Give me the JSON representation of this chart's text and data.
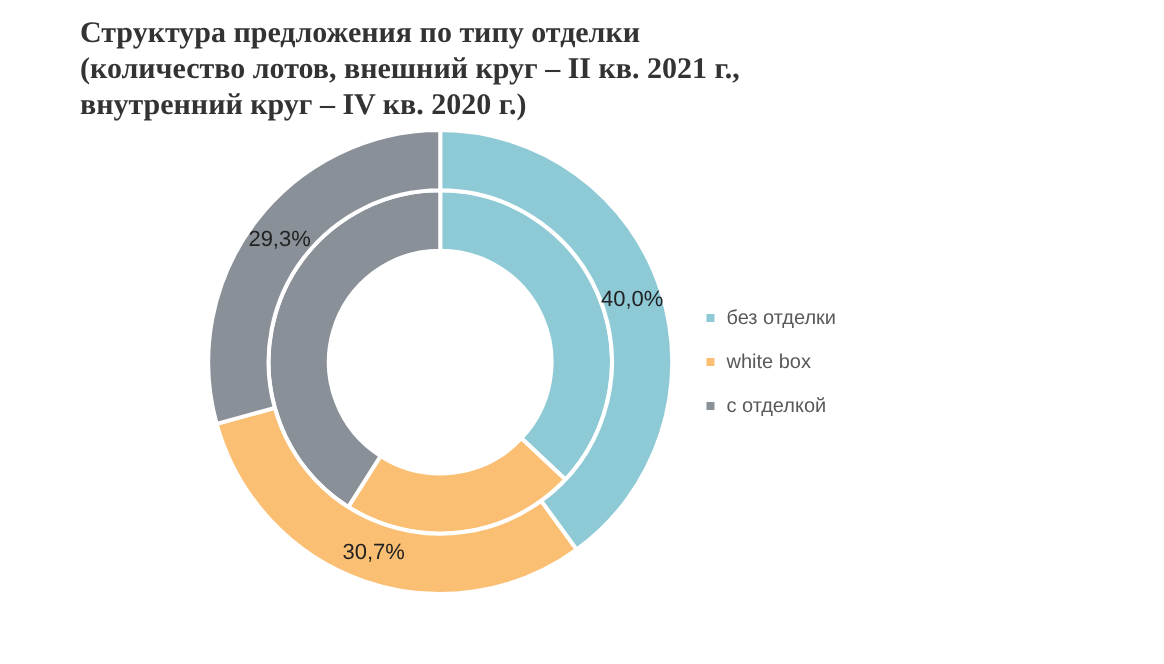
{
  "chart_data": {
    "type": "donut",
    "title": "Структура  предложения по типу отделки\n(количество лотов, внешний круг – II кв. 2021 г.,\nвнутренний круг – IV кв. 2020 г.)",
    "categories": [
      "без отделки",
      "white box",
      "с отделкой"
    ],
    "colors": [
      "#8ecad6",
      "#fbbf73",
      "#8a9098"
    ],
    "legend": "right",
    "series": [
      {
        "values": [
          40.0,
          30.7,
          29.3
        ],
        "value_labels": [
          "40,0%",
          "30,7%",
          "29,3%"
        ]
      },
      {
        "values": [
          37,
          22,
          41
        ]
      }
    ]
  }
}
